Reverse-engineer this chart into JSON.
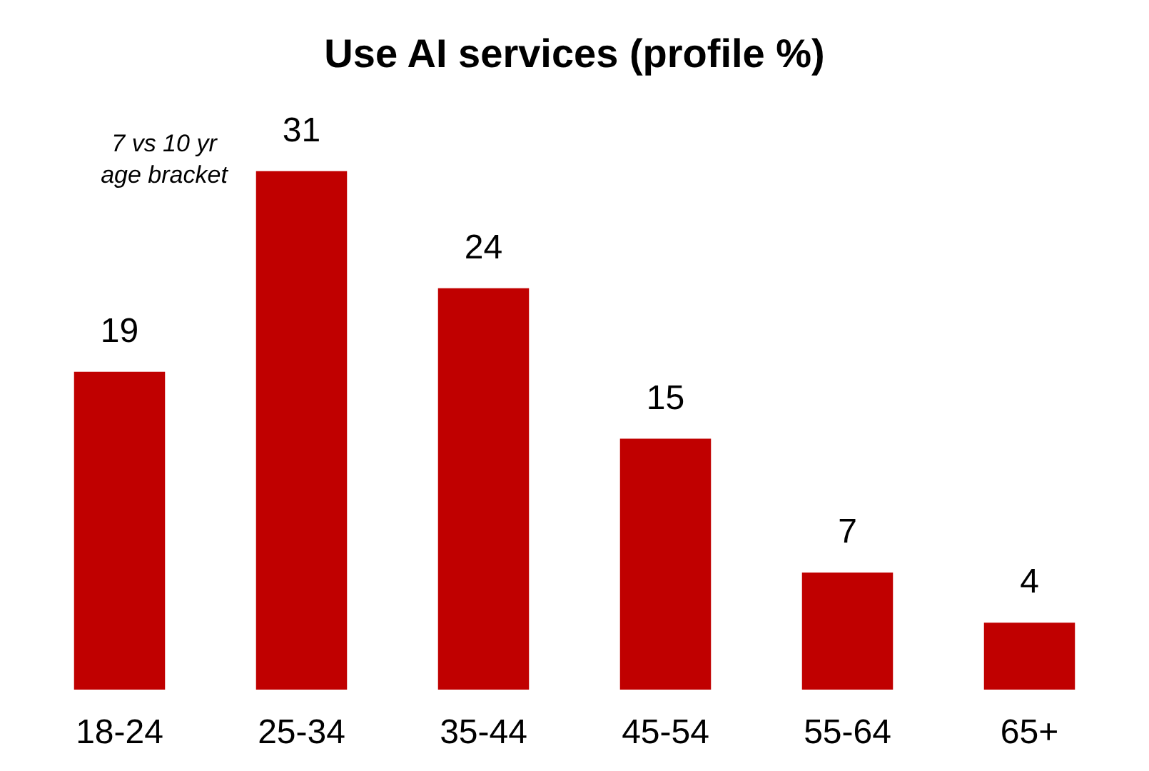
{
  "chart_data": {
    "type": "bar",
    "title": "Use AI services (profile %)",
    "categories": [
      "18-24",
      "25-34",
      "35-44",
      "45-54",
      "55-64",
      "65+"
    ],
    "values": [
      19,
      31,
      24,
      15,
      7,
      4
    ],
    "color": "#c00000",
    "data_labels": true,
    "annotations": [
      "7 vs 10 yr\nage bracket"
    ]
  }
}
